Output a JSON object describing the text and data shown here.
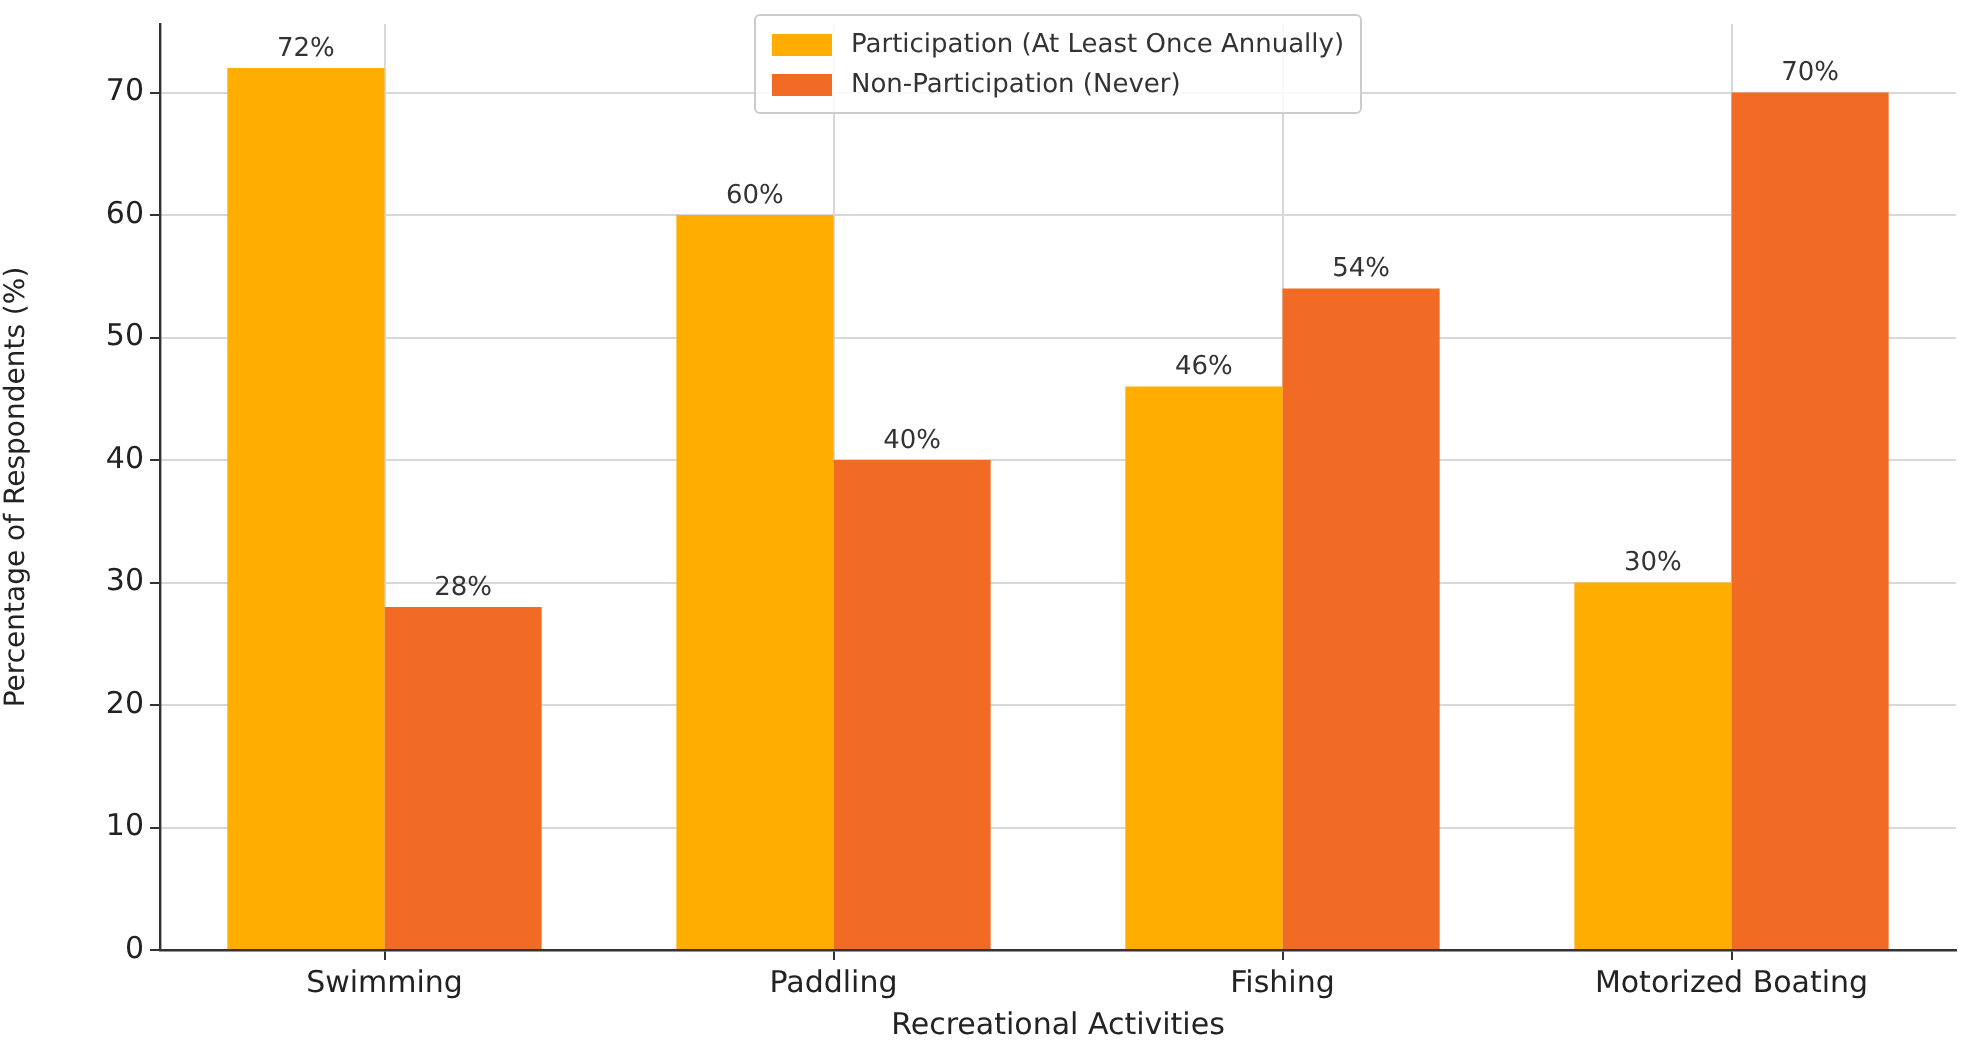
{
  "chart_data": {
    "type": "bar",
    "xlabel": "Recreational Activities",
    "ylabel": "Percentage of Respondents (%)",
    "categories": [
      "Swimming",
      "Paddling",
      "Fishing",
      "Motorized Boating"
    ],
    "series": [
      {
        "name": "Participation (At Least Once Annually)",
        "color": "#ffae00",
        "values": [
          72,
          60,
          46,
          30
        ],
        "value_labels": [
          "72%",
          "60%",
          "46%",
          "30%"
        ]
      },
      {
        "name": "Non-Participation (Never)",
        "color": "#f26b24",
        "values": [
          28,
          40,
          54,
          70
        ],
        "value_labels": [
          "28%",
          "40%",
          "54%",
          "70%"
        ]
      }
    ],
    "ylim": [
      0,
      75.6
    ],
    "yticks": [
      0,
      10,
      20,
      30,
      40,
      50,
      60,
      70
    ],
    "grid": true,
    "legend": "top"
  }
}
